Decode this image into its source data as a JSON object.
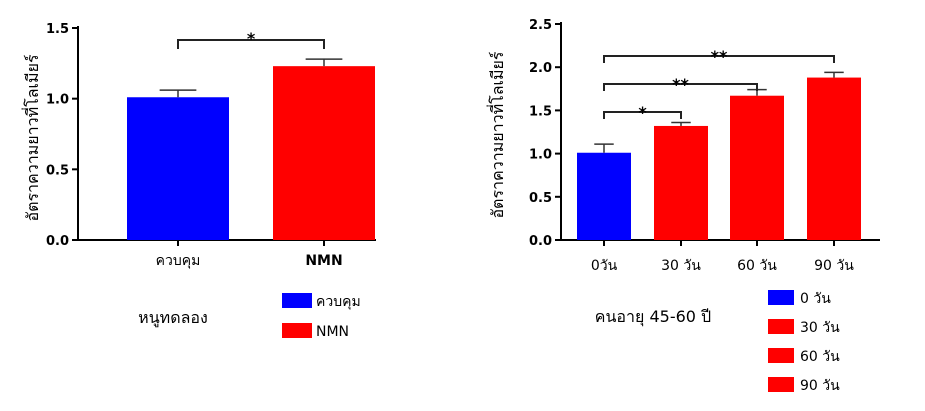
{
  "chart_data": [
    {
      "type": "bar",
      "subtitle": "หนูทดลอง",
      "ylabel": "อัตราความยาวที่โลเมียร์",
      "categories": [
        "ควบคุม",
        "NMN"
      ],
      "category_bold": [
        false,
        true
      ],
      "values": [
        1.01,
        1.23
      ],
      "errors": [
        0.05,
        0.05
      ],
      "colors": [
        "#0000FF",
        "#FF0000"
      ],
      "ylim": [
        0,
        1.5
      ],
      "yticks": [
        "0.0",
        "0.5",
        "1.0",
        "1.5"
      ],
      "ytick_values": [
        0,
        0.5,
        1.0,
        1.5
      ],
      "significance": [
        {
          "from": 0,
          "to": 1,
          "label": "*"
        }
      ],
      "legend": [
        {
          "label": "ควบคุม",
          "color": "#0000FF"
        },
        {
          "label": "NMN",
          "color": "#FF0000"
        }
      ]
    },
    {
      "type": "bar",
      "subtitle": "คนอายุ 45-60 ปี",
      "ylabel": "อัตราความยาวที่โลเมียร์",
      "categories": [
        "0วัน",
        "30 วัน",
        "60 วัน",
        "90 วัน"
      ],
      "values": [
        1.01,
        1.32,
        1.67,
        1.88
      ],
      "errors": [
        0.1,
        0.04,
        0.07,
        0.06
      ],
      "colors": [
        "#0000FF",
        "#FF0000",
        "#FF0000",
        "#FF0000"
      ],
      "ylim": [
        0,
        2.5
      ],
      "yticks": [
        "0.0",
        "0.5",
        "1.0",
        "1.5",
        "2.0",
        "2.5"
      ],
      "ytick_values": [
        0,
        0.5,
        1.0,
        1.5,
        2.0,
        2.5
      ],
      "significance": [
        {
          "from": 0,
          "to": 1,
          "label": "*"
        },
        {
          "from": 0,
          "to": 2,
          "label": "**"
        },
        {
          "from": 0,
          "to": 3,
          "label": "**"
        }
      ],
      "legend": [
        {
          "label": "0 วัน",
          "color": "#0000FF"
        },
        {
          "label": "30 วัน",
          "color": "#FF0000"
        },
        {
          "label": "60 วัน",
          "color": "#FF0000"
        },
        {
          "label": "90 วัน",
          "color": "#FF0000"
        }
      ]
    }
  ]
}
